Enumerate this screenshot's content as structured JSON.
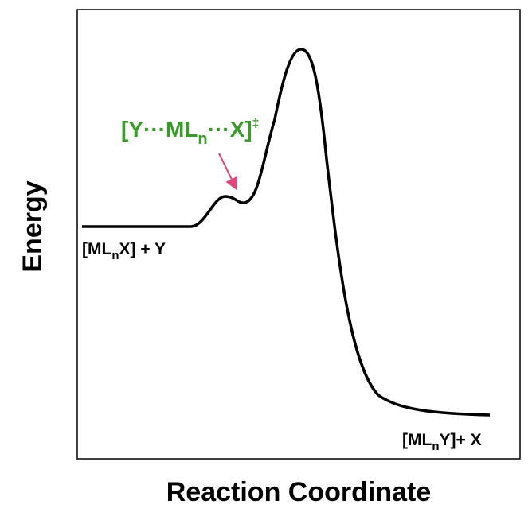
{
  "axes": {
    "y_label": "Energy",
    "x_label": "Reaction Coordinate"
  },
  "labels": {
    "reactant": {
      "main": "[ML",
      "sub": "n",
      "tail": "X] + Y"
    },
    "transition_state": {
      "main": "[Y···ML",
      "sub": "n",
      "tail": "···X]",
      "sup": "‡"
    },
    "product": {
      "main": "[ML",
      "sub": "n",
      "tail": "Y]+ X"
    }
  }
}
